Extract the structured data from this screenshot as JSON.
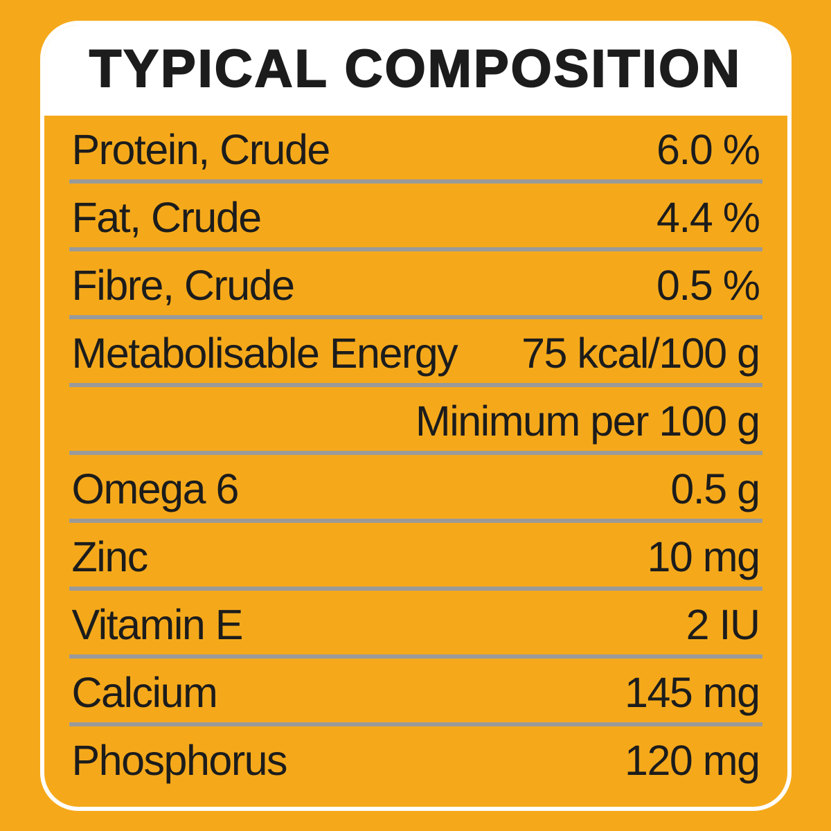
{
  "title": "TYPICAL COMPOSITION",
  "colors": {
    "background": "#f5a91a",
    "panel_border": "#ffffff",
    "title_bg": "#ffffff",
    "text": "#1c1c1c",
    "divider": "#9a9a9a"
  },
  "rows": [
    {
      "label": "Protein, Crude",
      "value": "6.0 %"
    },
    {
      "label": "Fat, Crude",
      "value": "4.4 %"
    },
    {
      "label": "Fibre, Crude",
      "value": "0.5 %"
    },
    {
      "label": "Metabolisable Energy",
      "value": "75 kcal/100 g"
    }
  ],
  "subheading": "Minimum per 100 g",
  "rows2": [
    {
      "label": "Omega 6",
      "value": "0.5 g"
    },
    {
      "label": "Zinc",
      "value": "10 mg"
    },
    {
      "label": "Vitamin E",
      "value": "2 IU"
    },
    {
      "label": "Calcium",
      "value": "145 mg"
    },
    {
      "label": "Phosphorus",
      "value": "120 mg"
    }
  ]
}
